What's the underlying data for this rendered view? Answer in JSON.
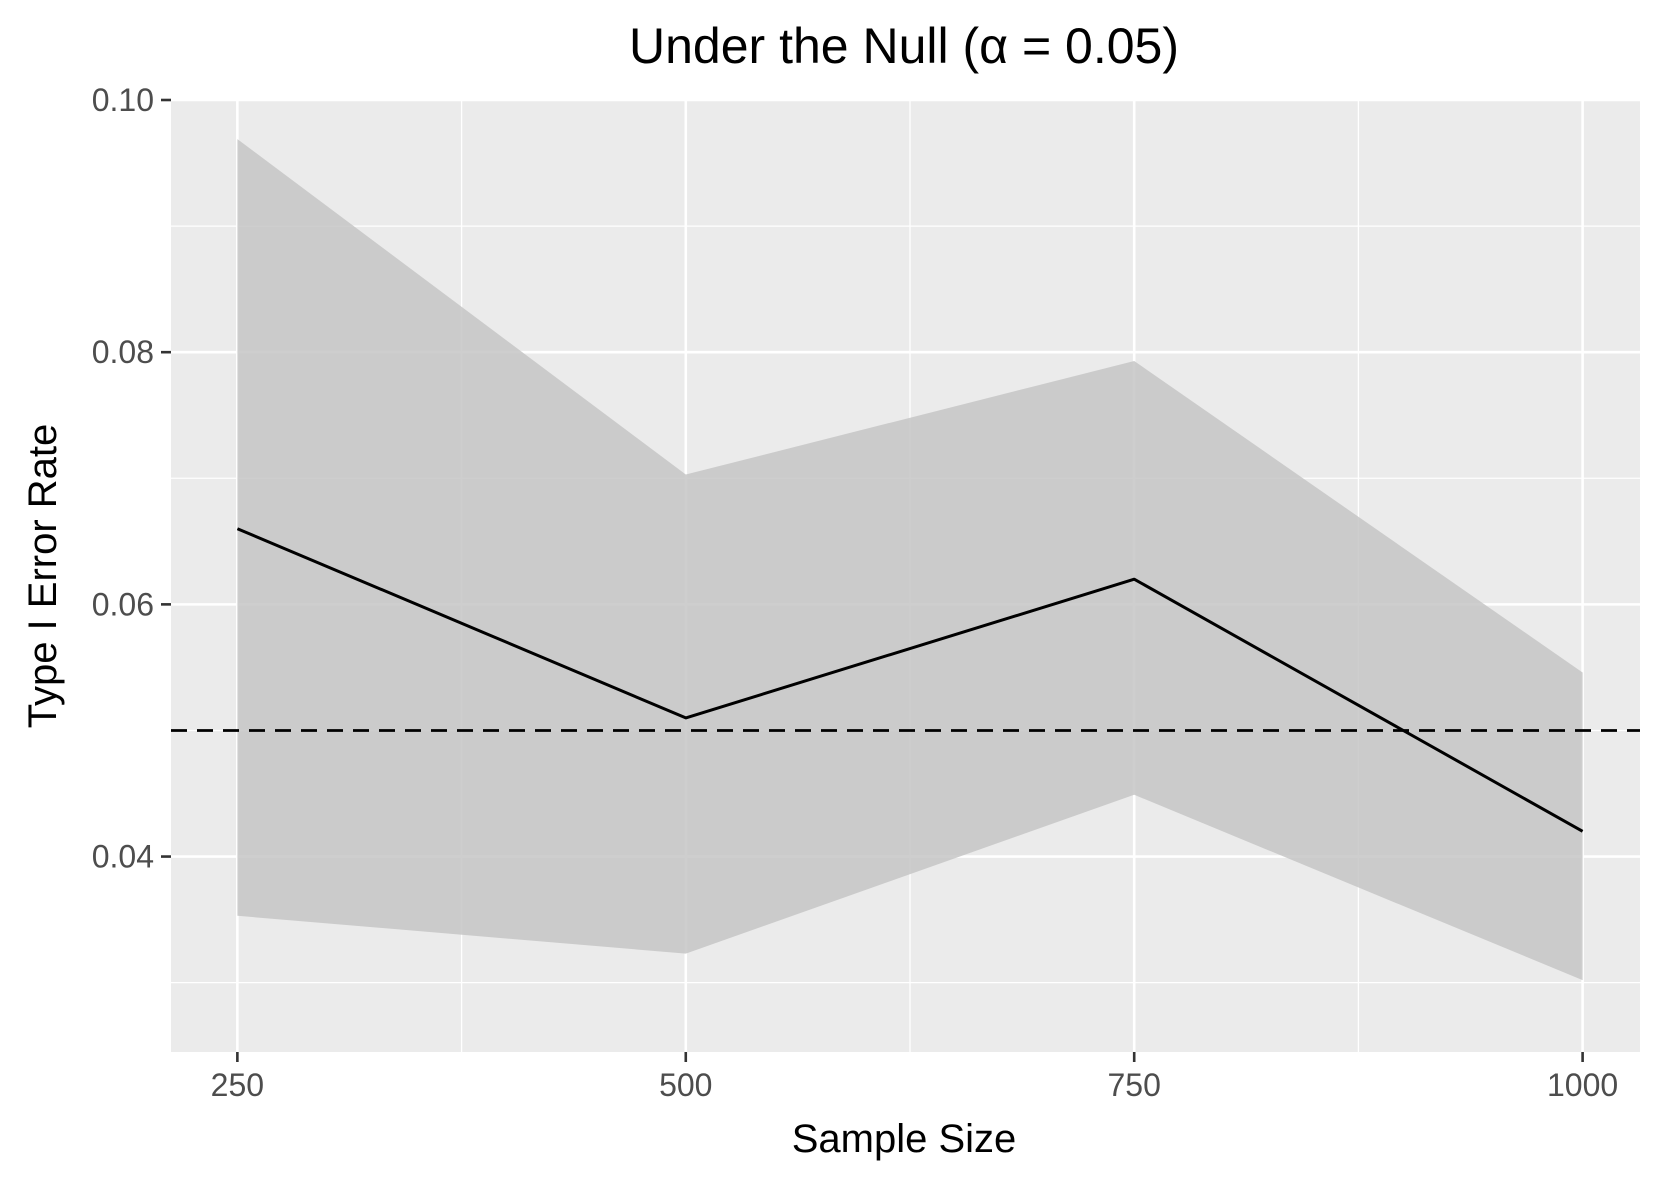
{
  "chart_data": {
    "type": "line",
    "title": "Under the Null (α = 0.05)",
    "xlabel": "Sample Size",
    "ylabel": "Type I Error Rate",
    "x": [
      250,
      500,
      750,
      1000
    ],
    "x_ticks": [
      250,
      500,
      750,
      1000
    ],
    "x_tick_labels": [
      "250",
      "500",
      "750",
      "1000"
    ],
    "xlim": [
      213,
      1032
    ],
    "y_ticks": [
      0.04,
      0.06,
      0.08,
      0.1
    ],
    "y_tick_labels": [
      "0.04",
      "0.06",
      "0.08",
      "0.10"
    ],
    "ylim": [
      0.0245,
      0.1
    ],
    "series": [
      {
        "values": [
          0.066,
          0.051,
          0.062,
          0.042
        ],
        "lower": [
          0.0353,
          0.0323,
          0.0449,
          0.0302
        ],
        "upper": [
          0.0969,
          0.0703,
          0.0793,
          0.0546
        ]
      }
    ],
    "reference_line": {
      "y": 0.05,
      "style": "dashed"
    },
    "grid": true,
    "colors": {
      "panel_background": "#ebebeb",
      "grid": "#ffffff",
      "line": "#000000",
      "ribbon": "#c6c6c6"
    }
  }
}
